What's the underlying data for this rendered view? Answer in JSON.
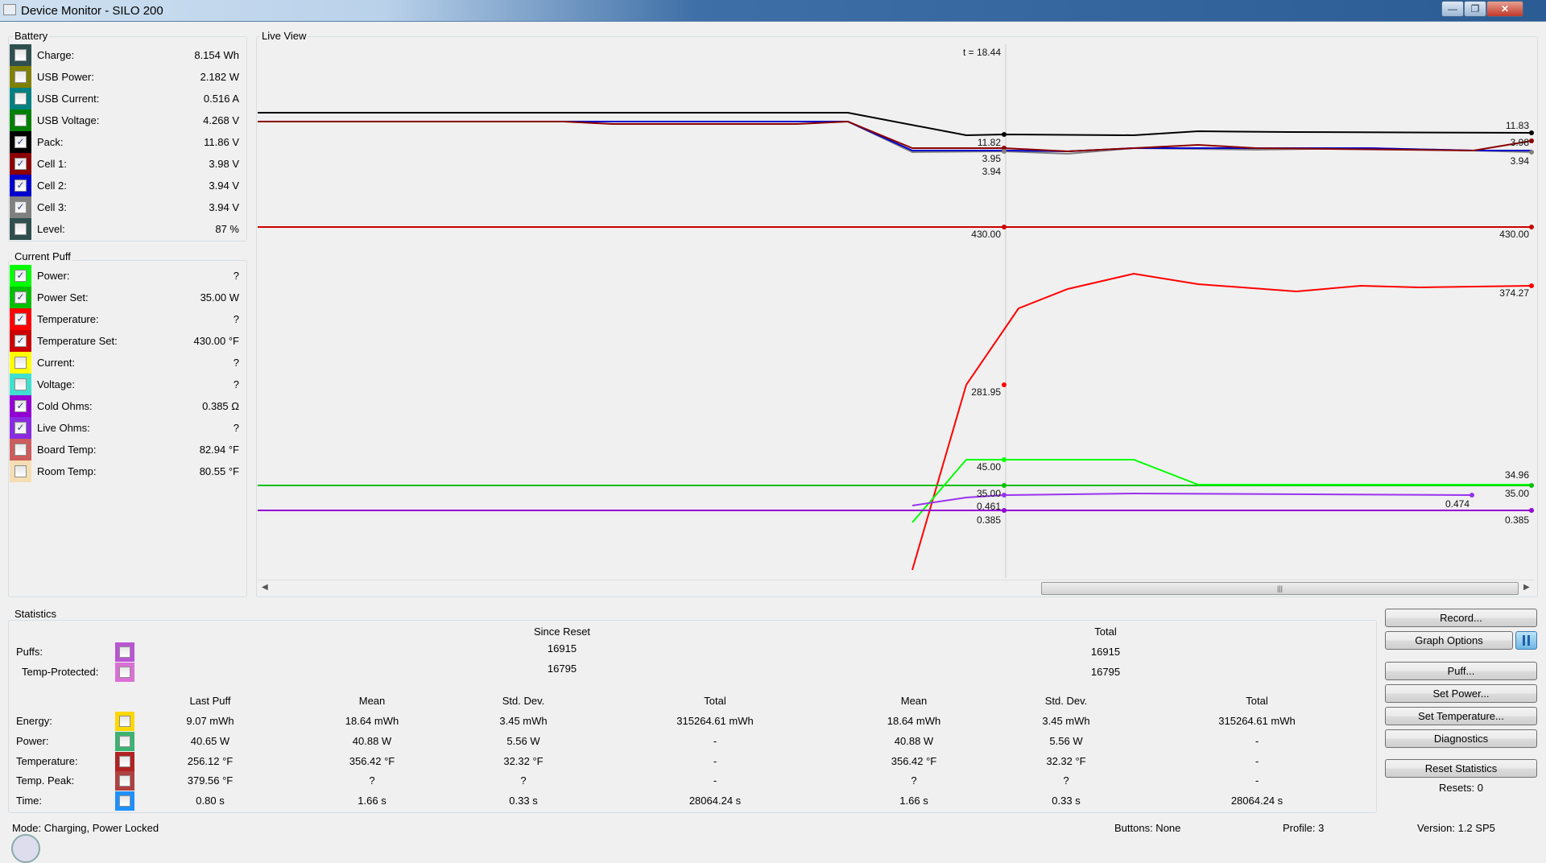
{
  "window": {
    "title": "Device Monitor - SILO 200",
    "min": "—",
    "max": "❐",
    "close": "✕"
  },
  "battery": {
    "title": "Battery",
    "items": [
      {
        "label": "Charge:",
        "value": "8.154 Wh",
        "color": "#2f4f4f",
        "checked": false
      },
      {
        "label": "USB Power:",
        "value": "2.182 W",
        "color": "#808000",
        "checked": false
      },
      {
        "label": "USB Current:",
        "value": "0.516 A",
        "color": "#008080",
        "checked": false
      },
      {
        "label": "USB Voltage:",
        "value": "4.268 V",
        "color": "#008000",
        "checked": false
      },
      {
        "label": "Pack:",
        "value": "11.86 V",
        "color": "#000000",
        "checked": true
      },
      {
        "label": "Cell 1:",
        "value": "3.98 V",
        "color": "#8b0000",
        "checked": true
      },
      {
        "label": "Cell 2:",
        "value": "3.94 V",
        "color": "#0000cd",
        "checked": true
      },
      {
        "label": "Cell 3:",
        "value": "3.94 V",
        "color": "#808080",
        "checked": true
      },
      {
        "label": "Level:",
        "value": "87 %",
        "color": "#2f4f4f",
        "checked": false
      }
    ]
  },
  "current_puff": {
    "title": "Current Puff",
    "items": [
      {
        "label": "Power:",
        "value": "?",
        "color": "#00ff00",
        "checked": true
      },
      {
        "label": "Power Set:",
        "value": "35.00 W",
        "color": "#00c000",
        "checked": true
      },
      {
        "label": "Temperature:",
        "value": "?",
        "color": "#ff0000",
        "checked": true
      },
      {
        "label": "Temperature Set:",
        "value": "430.00 °F",
        "color": "#cc0000",
        "checked": true
      },
      {
        "label": "Current:",
        "value": "?",
        "color": "#ffff00",
        "checked": false
      },
      {
        "label": "Voltage:",
        "value": "?",
        "color": "#40e0d0",
        "checked": false
      },
      {
        "label": "Cold Ohms:",
        "value": "0.385 Ω",
        "color": "#9400d3",
        "checked": true
      },
      {
        "label": "Live Ohms:",
        "value": "?",
        "color": "#8a2be2",
        "checked": true
      },
      {
        "label": "Board Temp:",
        "value": "82.94 °F",
        "color": "#cd5c5c",
        "checked": false
      },
      {
        "label": "Room Temp:",
        "value": "80.55 °F",
        "color": "#f5deb3",
        "checked": false
      }
    ]
  },
  "live_view": {
    "title": "Live View",
    "cursor": "t = 18.44",
    "labels": {
      "pack_cursor": "11.82",
      "pack_end": "11.83",
      "cell_cursor_a": "3.95",
      "cell_cursor_b": "3.94",
      "cell1_end": "3.98",
      "cell_end": "3.94",
      "tset_cursor": "430.00",
      "tset_end": "430.00",
      "temp_cursor": "281.95",
      "temp_end": "374.27",
      "power_cursor": "45.00",
      "pset_cursor": "35.00",
      "pset_end": "35.00",
      "power_end": "34.96",
      "live_cursor": "0.461",
      "live_end": "0.474",
      "cold_cursor": "0.385",
      "cold_end": "0.385"
    }
  },
  "statistics": {
    "title": "Statistics",
    "since_reset": "Since Reset",
    "total": "Total",
    "counts": [
      {
        "label": "Puffs:",
        "color": "#ba55d3",
        "since": "16915",
        "total": "16915"
      },
      {
        "label": "Temp-Protected:",
        "color": "#da70d6",
        "since": "16795",
        "total": "16795"
      }
    ],
    "headers": [
      "Last Puff",
      "Mean",
      "Std. Dev.",
      "Total",
      "Mean",
      "Std. Dev.",
      "Total"
    ],
    "rows": [
      {
        "label": "Energy:",
        "color": "#ffd700",
        "cells": [
          "9.07 mWh",
          "18.64 mWh",
          "3.45 mWh",
          "315264.61 mWh",
          "18.64 mWh",
          "3.45 mWh",
          "315264.61 mWh"
        ]
      },
      {
        "label": "Power:",
        "color": "#3cb371",
        "cells": [
          "40.65 W",
          "40.88 W",
          "5.56 W",
          "-",
          "40.88 W",
          "5.56 W",
          "-"
        ]
      },
      {
        "label": "Temperature:",
        "color": "#b22222",
        "cells": [
          "256.12 °F",
          "356.42 °F",
          "32.32 °F",
          "-",
          "356.42 °F",
          "32.32 °F",
          "-"
        ]
      },
      {
        "label": "Temp. Peak:",
        "color": "#b04040",
        "cells": [
          "379.56 °F",
          "?",
          "?",
          "-",
          "?",
          "?",
          "-"
        ]
      },
      {
        "label": "Time:",
        "color": "#1e90ff",
        "cells": [
          "0.80 s",
          "1.66 s",
          "0.33 s",
          "28064.24 s",
          "1.66 s",
          "0.33 s",
          "28064.24 s"
        ]
      }
    ]
  },
  "buttons": {
    "record": "Record...",
    "graph_options": "Graph Options",
    "pause_icon": "pause-icon",
    "puff": "Puff...",
    "set_power": "Set Power...",
    "set_temperature": "Set Temperature...",
    "diagnostics": "Diagnostics",
    "reset_statistics": "Reset Statistics",
    "resets": "Resets: 0"
  },
  "status": {
    "mode": "Mode: Charging, Power Locked",
    "buttons": "Buttons: None",
    "profile": "Profile: 3",
    "version": "Version: 1.2 SP5"
  }
}
